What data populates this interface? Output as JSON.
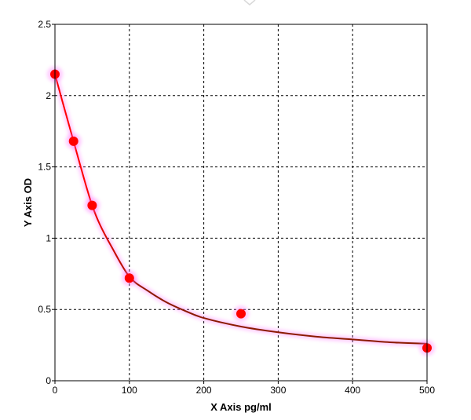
{
  "chart_data": {
    "type": "scatter",
    "xlabel": "X Axis pg/ml",
    "ylabel": "Y Axis OD",
    "xlim": [
      0,
      500
    ],
    "ylim": [
      0,
      2.5
    ],
    "grid": true,
    "x_ticks": [
      0,
      100,
      200,
      300,
      400,
      500
    ],
    "y_ticks": [
      0,
      0.5,
      1,
      1.5,
      2,
      2.5
    ],
    "y_tick_labels": [
      "0",
      "0.5",
      "1",
      "1.5",
      "2",
      "2.5"
    ],
    "series": [
      {
        "points": [
          {
            "x": 0,
            "y": 2.15
          },
          {
            "x": 25,
            "y": 1.68
          },
          {
            "x": 50,
            "y": 1.23
          },
          {
            "x": 100,
            "y": 0.72
          },
          {
            "x": 250,
            "y": 0.47
          },
          {
            "x": 500,
            "y": 0.23
          }
        ]
      }
    ],
    "fit_curve": [
      {
        "x": 0,
        "y": 2.15
      },
      {
        "x": 10,
        "y": 1.96
      },
      {
        "x": 25,
        "y": 1.68
      },
      {
        "x": 40,
        "y": 1.4
      },
      {
        "x": 50,
        "y": 1.23
      },
      {
        "x": 60,
        "y": 1.1
      },
      {
        "x": 75,
        "y": 0.95
      },
      {
        "x": 100,
        "y": 0.73
      },
      {
        "x": 125,
        "y": 0.63
      },
      {
        "x": 150,
        "y": 0.55
      },
      {
        "x": 175,
        "y": 0.49
      },
      {
        "x": 200,
        "y": 0.44
      },
      {
        "x": 250,
        "y": 0.38
      },
      {
        "x": 300,
        "y": 0.34
      },
      {
        "x": 350,
        "y": 0.31
      },
      {
        "x": 400,
        "y": 0.29
      },
      {
        "x": 450,
        "y": 0.27
      },
      {
        "x": 500,
        "y": 0.26
      }
    ],
    "colors": {
      "marker": "#ff0000",
      "curve_start": "#ff0000",
      "curve_end": "#8b1a00",
      "highlight": "#ff66ff",
      "grid": "#000000",
      "axis": "#000000"
    }
  }
}
